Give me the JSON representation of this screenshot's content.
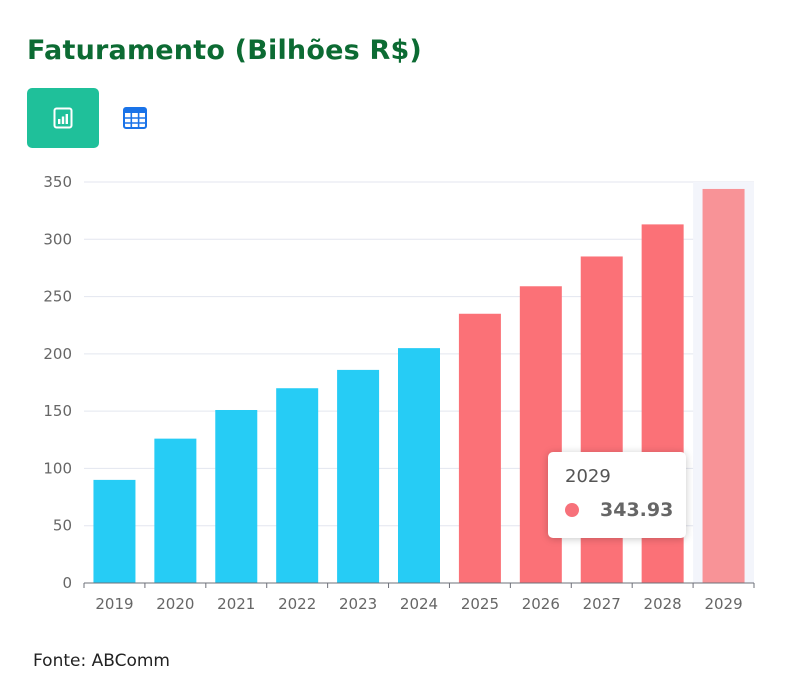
{
  "title": "Faturamento (Bilhões R$)",
  "view_toggle": {
    "chart_icon": "bar-chart-icon",
    "table_icon": "table-grid-icon",
    "active_color": "#1fc09a",
    "table_icon_color": "#1a73e8"
  },
  "chart_data": {
    "type": "bar",
    "title": "Faturamento (Bilhões R$)",
    "xlabel": "",
    "ylabel": "",
    "categories": [
      "2019",
      "2020",
      "2021",
      "2022",
      "2023",
      "2024",
      "2025",
      "2026",
      "2027",
      "2028",
      "2029"
    ],
    "values": [
      90,
      126,
      151,
      170,
      186,
      205,
      235,
      259,
      285,
      313,
      343.93
    ],
    "ylim": [
      0,
      350
    ],
    "yticks": [
      0,
      50,
      100,
      150,
      200,
      250,
      300,
      350
    ],
    "grid": true,
    "colors": {
      "historical": "#26ccf5",
      "projected": "#fb7177",
      "highlighted": "#f89397"
    },
    "projected_from": "2025",
    "highlighted_category": "2029"
  },
  "tooltip": {
    "category": "2029",
    "value": "343.93"
  },
  "source": "Fonte: ABComm"
}
